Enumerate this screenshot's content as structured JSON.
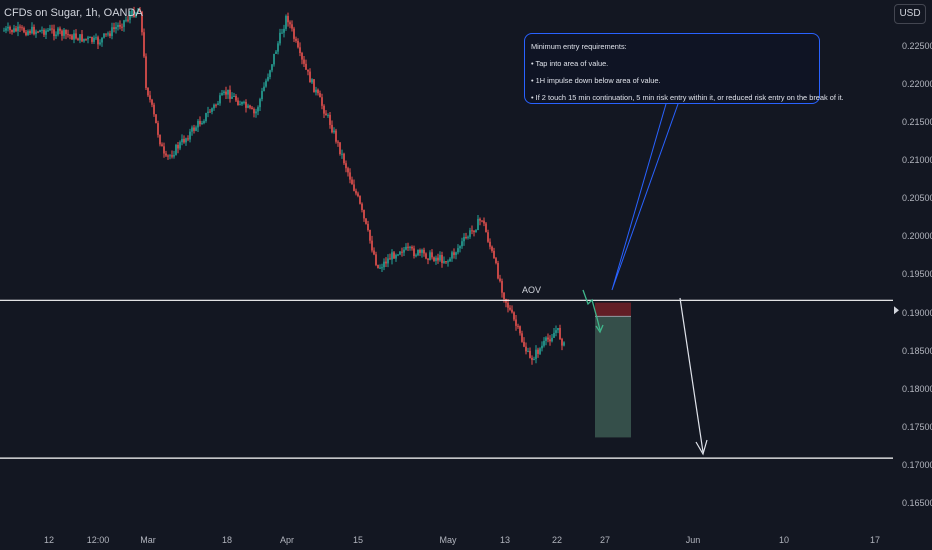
{
  "header": {
    "symbol_text": "CFDs on Sugar, 1h, OANDA",
    "currency_label": "USD"
  },
  "callout": {
    "title": "Minimum entry requirements:",
    "items": [
      "• Tap into area of value.",
      "• 1H impulse down below area of value.",
      "• If 2 touch 15 min continuation, 5 min risk entry within it, or reduced risk entry on the break of it."
    ]
  },
  "annotations": {
    "aov_label": "AOV"
  },
  "colors": {
    "background": "#131722",
    "up_candle": "#26a69a",
    "down_candle": "#ef5350",
    "level_line": "#ffffff",
    "callout_border": "#2962ff",
    "stop_zone": "#6b1f27",
    "target_zone": "#3a554f"
  },
  "chart_data": {
    "type": "candlestick",
    "title": "CFDs on Sugar, 1h, OANDA",
    "y_axis": {
      "ticks": [
        "0.22500",
        "0.22000",
        "0.21500",
        "0.21000",
        "0.20500",
        "0.20000",
        "0.19500",
        "0.19000",
        "0.18500",
        "0.18000",
        "0.17500",
        "0.17000",
        "0.16500"
      ],
      "range": [
        0.1625,
        0.2295
      ],
      "unit": "USD"
    },
    "x_axis": {
      "ticks": [
        "12",
        "12:00",
        "Mar",
        "18",
        "Apr",
        "15",
        "May",
        "13",
        "22",
        "27",
        "Jun",
        "10",
        "17"
      ]
    },
    "price_path": [
      [
        "12",
        0.227
      ],
      [
        "12:00",
        0.2255
      ],
      [
        "Mar",
        0.23
      ],
      [
        "Mar+",
        0.22
      ],
      [
        "mid-Mar",
        0.21
      ],
      [
        "18",
        0.219
      ],
      [
        "late-Mar",
        0.216
      ],
      [
        "Apr",
        0.229
      ],
      [
        "early-Apr",
        0.2235
      ],
      [
        "mid-Apr",
        0.215
      ],
      [
        "15",
        0.205
      ],
      [
        "late-Apr",
        0.196
      ],
      [
        "early-May",
        0.1985
      ],
      [
        "May",
        0.197
      ],
      [
        "May+",
        0.2025
      ],
      [
        "13",
        0.192
      ],
      [
        "mid-May",
        0.184
      ],
      [
        "22",
        0.188
      ],
      [
        "late-May",
        0.1855
      ]
    ],
    "levels": [
      {
        "name": "AOV",
        "value": 0.1918
      },
      {
        "value": 0.1712
      }
    ],
    "short_position": {
      "entry": 0.1897,
      "stop": 0.1915,
      "target": 0.1739
    },
    "grid": false
  }
}
